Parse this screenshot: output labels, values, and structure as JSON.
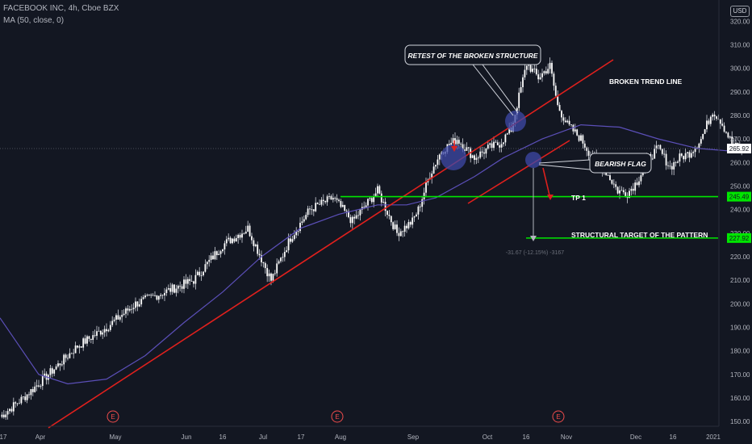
{
  "header": {
    "title": "FACEBOOK INC, 4h, Cboe BZX",
    "indicator": "MA (50, close, 0)",
    "currency": "USD"
  },
  "colors": {
    "background": "#131722",
    "up_candle": "#ffffff",
    "down_candle": "#ffffff",
    "ma_line": "#5b4fb8",
    "trend_line": "#e0201d",
    "level_line": "#00e600",
    "earnings_marker": "#f04c4c",
    "circle_fill": "#3f4aa8"
  },
  "chart_data": {
    "type": "candlestick",
    "y_axis_ticks": [
      150,
      160,
      170,
      180,
      190,
      200,
      210,
      220,
      230,
      240,
      250,
      260,
      270,
      280,
      290,
      300,
      310,
      320
    ],
    "y_axis_labels": [
      "150.00",
      "160.00",
      "170.00",
      "180.00",
      "190.00",
      "200.00",
      "210.00",
      "220.00",
      "230.00",
      "240.00",
      "250.00",
      "260.00",
      "270.00",
      "280.00",
      "290.00",
      "300.00",
      "310.00",
      "320.00"
    ],
    "x_axis_labels": [
      "17",
      "Apr",
      "May",
      "Jun",
      "16",
      "Jul",
      "17",
      "Aug",
      "Sep",
      "Oct",
      "16",
      "Nov",
      "Dec",
      "16",
      "2021"
    ],
    "ylim": [
      148,
      329
    ],
    "price_anchors": [
      [
        0,
        152
      ],
      [
        12,
        160
      ],
      [
        25,
        170
      ],
      [
        40,
        182
      ],
      [
        55,
        190
      ],
      [
        70,
        200
      ],
      [
        85,
        205
      ],
      [
        100,
        210
      ],
      [
        115,
        225
      ],
      [
        128,
        232
      ],
      [
        140,
        210
      ],
      [
        150,
        228
      ],
      [
        160,
        240
      ],
      [
        172,
        245
      ],
      [
        182,
        235
      ],
      [
        195,
        248
      ],
      [
        205,
        230
      ],
      [
        213,
        235
      ],
      [
        216,
        240
      ],
      [
        222,
        255
      ],
      [
        228,
        265
      ],
      [
        236,
        270
      ],
      [
        245,
        262
      ],
      [
        252,
        266
      ],
      [
        258,
        268
      ],
      [
        264,
        274
      ],
      [
        272,
        302
      ],
      [
        278,
        296
      ],
      [
        284,
        301
      ],
      [
        288,
        284
      ],
      [
        293,
        276
      ],
      [
        300,
        270
      ],
      [
        306,
        262
      ],
      [
        313,
        256
      ],
      [
        319,
        248
      ],
      [
        324,
        247
      ],
      [
        329,
        252
      ],
      [
        335,
        262
      ],
      [
        340,
        266
      ],
      [
        346,
        258
      ],
      [
        351,
        262
      ],
      [
        356,
        264
      ],
      [
        362,
        270
      ],
      [
        368,
        282
      ],
      [
        372,
        278
      ],
      [
        378,
        268
      ],
      [
        383,
        265
      ]
    ],
    "moving_average": {
      "name": "MA (50, close, 0)",
      "points": [
        [
          0,
          194
        ],
        [
          10,
          182
        ],
        [
          20,
          170
        ],
        [
          35,
          166
        ],
        [
          55,
          168
        ],
        [
          75,
          178
        ],
        [
          95,
          192
        ],
        [
          115,
          205
        ],
        [
          135,
          220
        ],
        [
          155,
          232
        ],
        [
          175,
          238
        ],
        [
          195,
          242
        ],
        [
          210,
          242
        ],
        [
          225,
          245
        ],
        [
          245,
          254
        ],
        [
          260,
          262
        ],
        [
          280,
          270
        ],
        [
          300,
          276
        ],
        [
          320,
          275
        ],
        [
          340,
          270
        ],
        [
          360,
          266
        ],
        [
          375,
          265
        ],
        [
          383,
          265
        ]
      ]
    },
    "current_price": "265.92",
    "tp1_level": "245.49",
    "structural_target_level": "227.92",
    "measurement_label": "-31.67 (-12.15%) -3167",
    "earnings_markers": [
      "E",
      "E",
      "E"
    ],
    "annotations": {
      "retest": "RETEST OF THE BROKEN STRUCTURE",
      "broken_trend": "BROKEN TREND LINE",
      "bearish_flag": "BEARISH FLAG",
      "tp1": "TP 1",
      "structural_target": "STRUCTURAL TARGET OF THE PATTERN"
    }
  }
}
